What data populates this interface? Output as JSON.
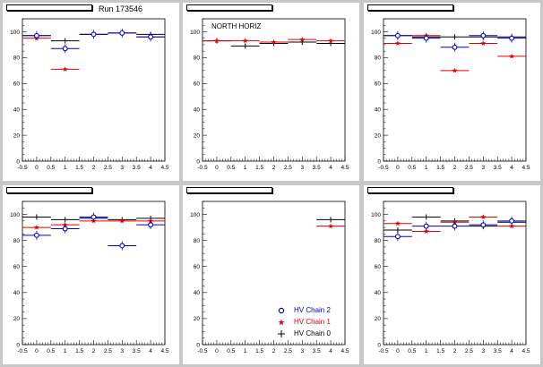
{
  "run_label": "Run 173546",
  "colors": {
    "hv_chain_2": "#0000cc",
    "hv_chain_1": "#e00000",
    "hv_chain_0": "#000000",
    "background": "#c8c8c8"
  },
  "legend": [
    {
      "name": "HV Chain 2",
      "marker": "open-circle",
      "color": "#0000cc"
    },
    {
      "name": "HV Chain 1",
      "marker": "star",
      "color": "#e00000"
    },
    {
      "name": "HV Chain 0",
      "marker": "cross",
      "color": "#000000"
    }
  ],
  "chart_data": [
    {
      "type": "scatter",
      "title": "",
      "annotation": "",
      "xlim": [
        -0.5,
        4.5
      ],
      "ylim": [
        0,
        110
      ],
      "xticks": [
        "-0.5",
        "0",
        "0.5",
        "1",
        "1.5",
        "2",
        "2.5",
        "3",
        "3.5",
        "4",
        "4.5"
      ],
      "yticks": [
        "0",
        "20",
        "40",
        "60",
        "80",
        "100"
      ],
      "series": [
        {
          "name": "HV Chain 2",
          "x": [
            0,
            1,
            2,
            3,
            4
          ],
          "y": [
            97,
            87,
            98,
            99,
            96
          ]
        },
        {
          "name": "HV Chain 1",
          "x": [
            0,
            1,
            2,
            3,
            4
          ],
          "y": [
            95,
            71,
            98,
            99,
            96
          ]
        },
        {
          "name": "HV Chain 0",
          "x": [
            0,
            1,
            2,
            3,
            4
          ],
          "y": [
            97,
            93,
            98,
            99,
            98
          ]
        }
      ]
    },
    {
      "type": "scatter",
      "title": "",
      "annotation": "NORTH HORIZ",
      "xlim": [
        -0.5,
        4.5
      ],
      "ylim": [
        0,
        110
      ],
      "xticks": [
        "-0.5",
        "0",
        "0.5",
        "1",
        "1.5",
        "2",
        "2.5",
        "3",
        "3.5",
        "4",
        "4.5"
      ],
      "yticks": [
        "0",
        "20",
        "40",
        "60",
        "80",
        "100"
      ],
      "series": [
        {
          "name": "HV Chain 2",
          "x": [],
          "y": []
        },
        {
          "name": "HV Chain 1",
          "x": [
            0,
            1,
            2,
            3,
            4
          ],
          "y": [
            93,
            93,
            92,
            94,
            93
          ]
        },
        {
          "name": "HV Chain 0",
          "x": [
            0,
            1,
            2,
            3,
            4
          ],
          "y": [
            93,
            89,
            91,
            92,
            91
          ]
        }
      ]
    },
    {
      "type": "scatter",
      "title": "",
      "annotation": "",
      "xlim": [
        -0.5,
        4.5
      ],
      "ylim": [
        0,
        110
      ],
      "xticks": [
        "-0.5",
        "0",
        "0.5",
        "1",
        "1.5",
        "2",
        "2.5",
        "3",
        "3.5",
        "4",
        "4.5"
      ],
      "yticks": [
        "0",
        "20",
        "40",
        "60",
        "80",
        "100"
      ],
      "series": [
        {
          "name": "HV Chain 2",
          "x": [
            0,
            1,
            2,
            3,
            4
          ],
          "y": [
            97,
            95,
            88,
            97,
            95
          ]
        },
        {
          "name": "HV Chain 1",
          "x": [
            0,
            1,
            2,
            3,
            4
          ],
          "y": [
            91,
            97,
            70,
            91,
            81
          ]
        },
        {
          "name": "HV Chain 0",
          "x": [
            0,
            1,
            2,
            3,
            4
          ],
          "y": [
            97,
            96,
            96,
            96,
            96
          ]
        }
      ]
    },
    {
      "type": "scatter",
      "title": "",
      "annotation": "",
      "xlim": [
        -0.5,
        4.5
      ],
      "ylim": [
        0,
        110
      ],
      "xticks": [
        "-0.5",
        "0",
        "0.5",
        "1",
        "1.5",
        "2",
        "2.5",
        "3",
        "3.5",
        "4",
        "4.5"
      ],
      "yticks": [
        "0",
        "20",
        "40",
        "60",
        "80",
        "100"
      ],
      "series": [
        {
          "name": "HV Chain 2",
          "x": [
            0,
            1,
            2,
            3,
            4
          ],
          "y": [
            84,
            89,
            98,
            76,
            92
          ]
        },
        {
          "name": "HV Chain 1",
          "x": [
            0,
            1,
            2,
            3,
            4
          ],
          "y": [
            90,
            92,
            95,
            95,
            95
          ]
        },
        {
          "name": "HV Chain 0",
          "x": [
            0,
            1,
            2,
            3,
            4
          ],
          "y": [
            98,
            96,
            97,
            96,
            97
          ]
        }
      ]
    },
    {
      "type": "scatter",
      "title": "",
      "annotation": "",
      "xlim": [
        -0.5,
        4.5
      ],
      "ylim": [
        0,
        110
      ],
      "xticks": [
        "-0.5",
        "0",
        "0.5",
        "1",
        "1.5",
        "2",
        "2.5",
        "3",
        "3.5",
        "4",
        "4.5"
      ],
      "yticks": [
        "0",
        "20",
        "40",
        "60",
        "80",
        "100"
      ],
      "series": [
        {
          "name": "HV Chain 2",
          "x": [],
          "y": []
        },
        {
          "name": "HV Chain 1",
          "x": [
            4
          ],
          "y": [
            91
          ]
        },
        {
          "name": "HV Chain 0",
          "x": [
            4
          ],
          "y": [
            96
          ]
        }
      ]
    },
    {
      "type": "scatter",
      "title": "",
      "annotation": "",
      "xlim": [
        -0.5,
        4.5
      ],
      "ylim": [
        0,
        110
      ],
      "xticks": [
        "-0.5",
        "0",
        "0.5",
        "1",
        "1.5",
        "2",
        "2.5",
        "3",
        "3.5",
        "4",
        "4.5"
      ],
      "yticks": [
        "0",
        "20",
        "40",
        "60",
        "80",
        "100"
      ],
      "series": [
        {
          "name": "HV Chain 2",
          "x": [
            0,
            1,
            2,
            3,
            4
          ],
          "y": [
            83,
            91,
            91,
            92,
            95
          ]
        },
        {
          "name": "HV Chain 1",
          "x": [
            0,
            1,
            2,
            3,
            4
          ],
          "y": [
            93,
            87,
            94,
            98,
            91
          ]
        },
        {
          "name": "HV Chain 0",
          "x": [
            0,
            1,
            2,
            3,
            4
          ],
          "y": [
            88,
            98,
            95,
            91,
            94
          ]
        }
      ]
    }
  ]
}
